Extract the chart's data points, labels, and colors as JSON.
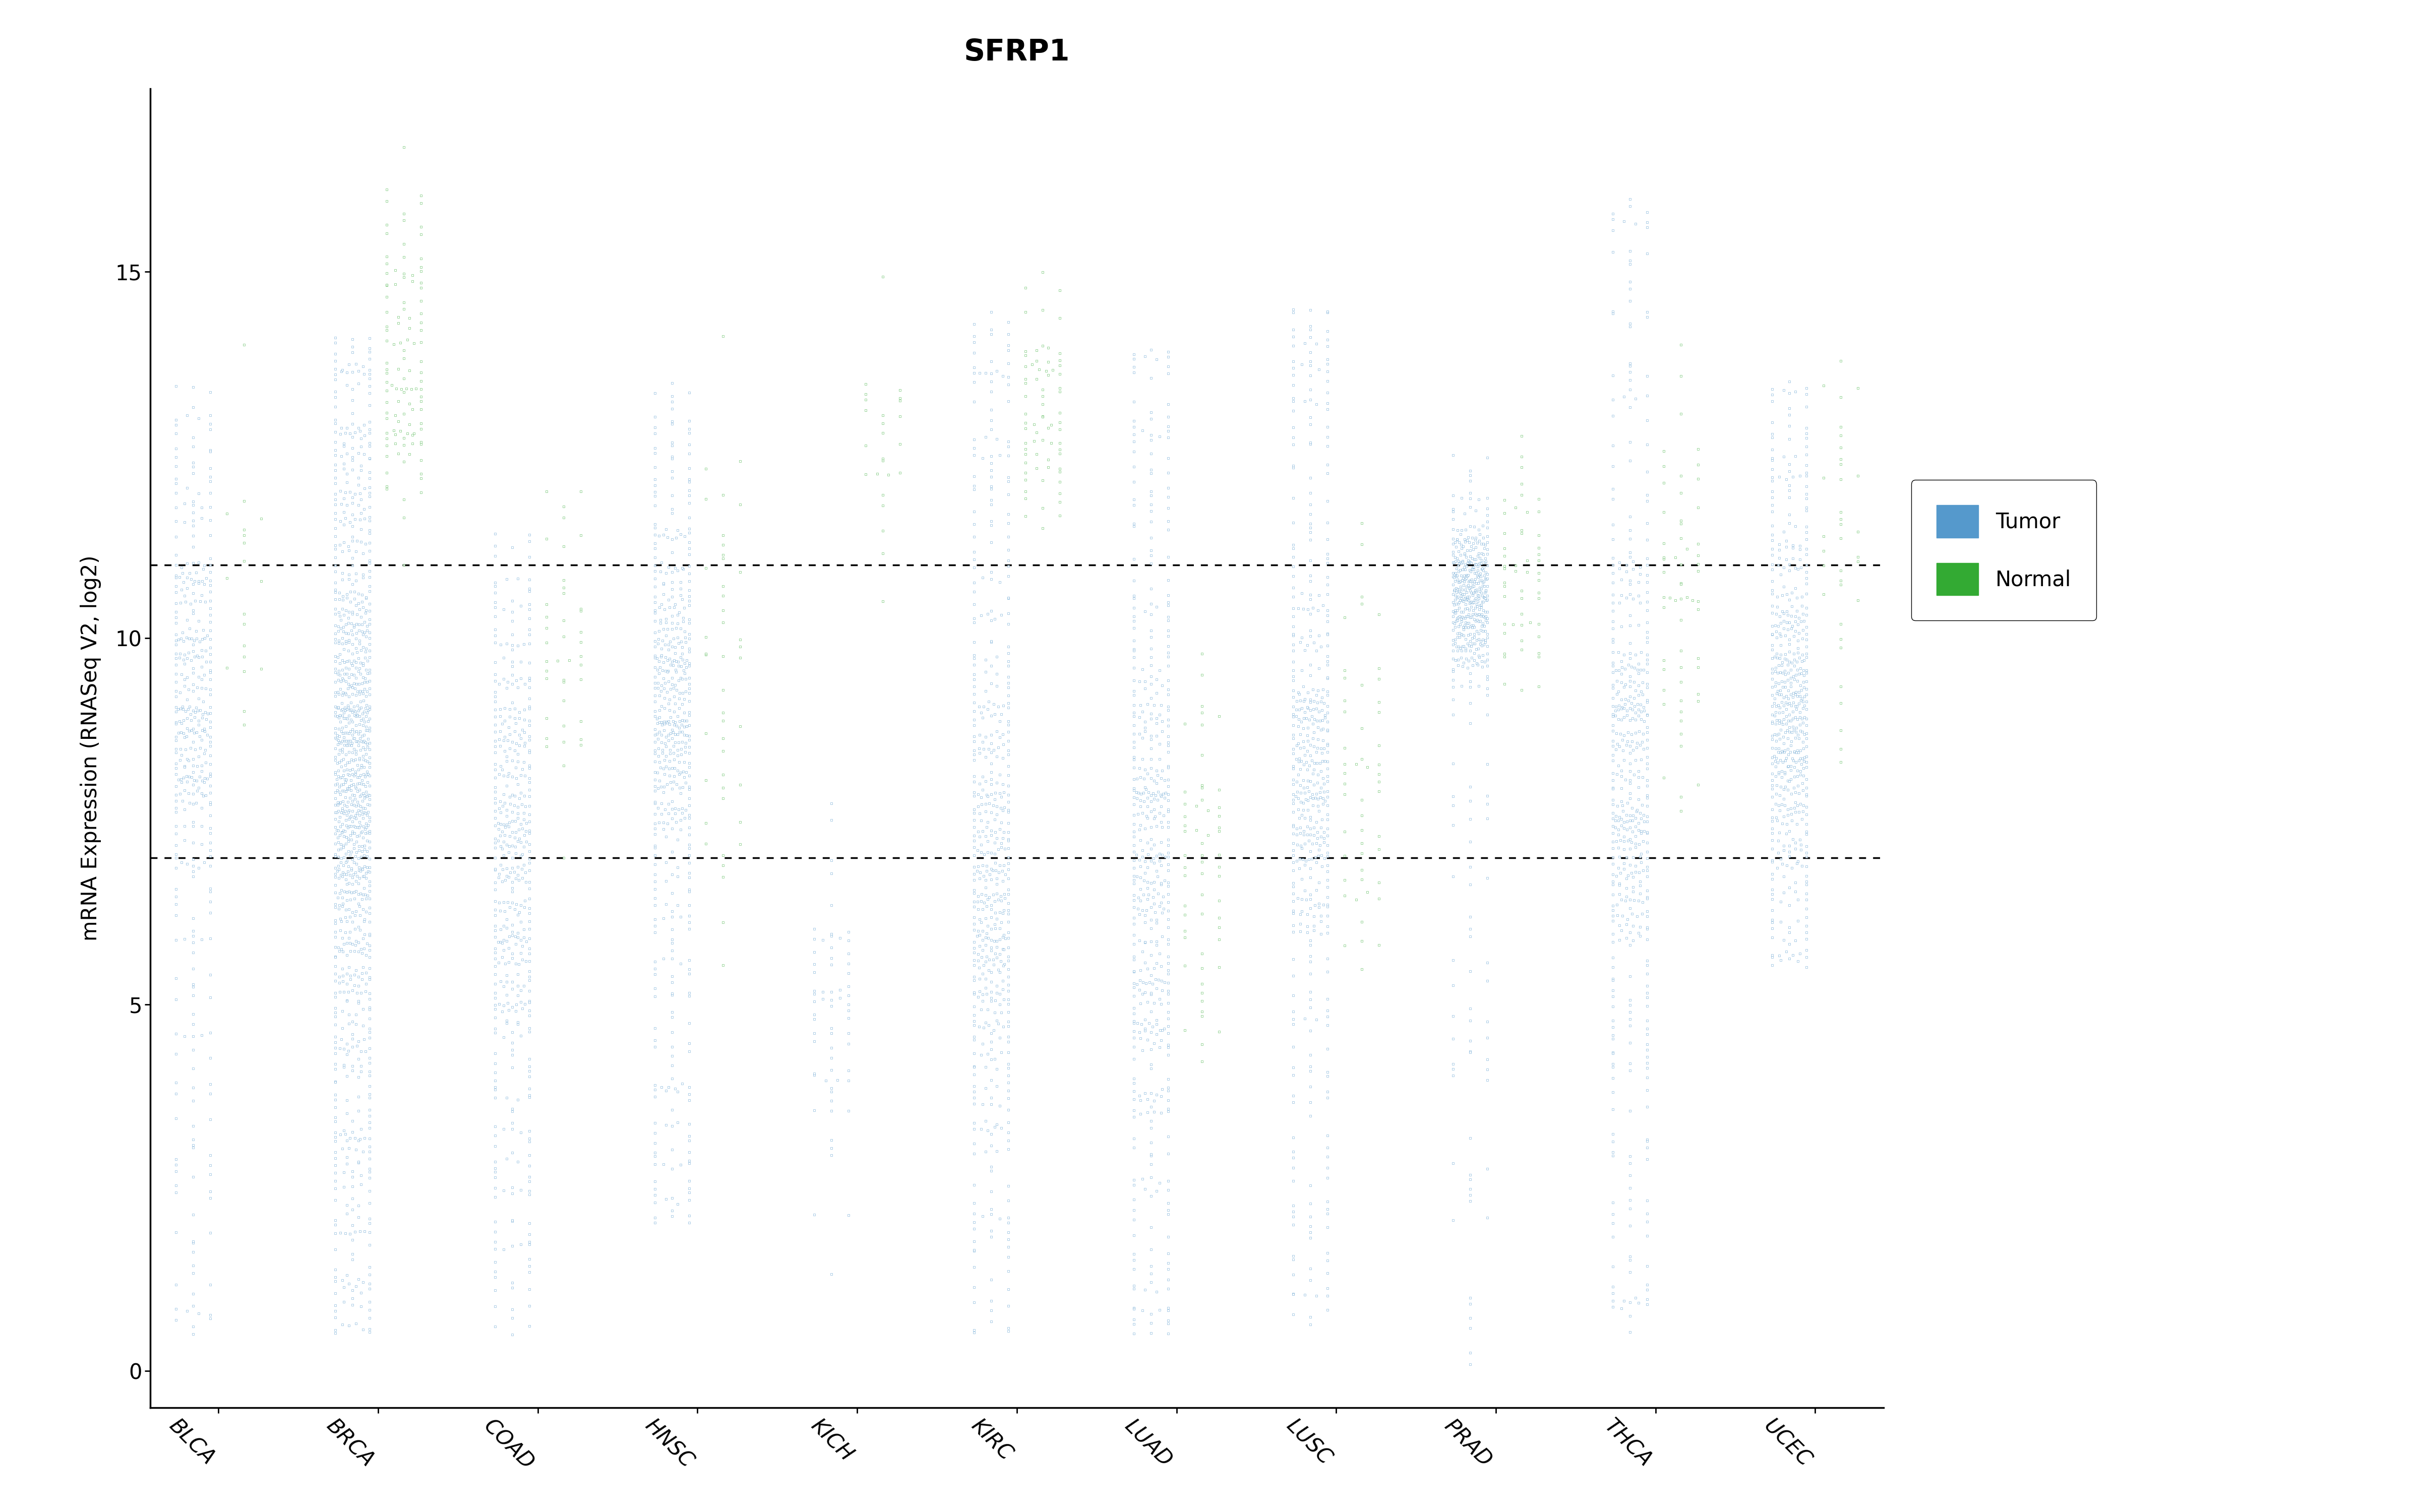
{
  "title": "SFRP1",
  "ylabel": "mRNA Expression (RNASeq V2, log2)",
  "cancer_types": [
    "BLCA",
    "BRCA",
    "COAD",
    "HNSC",
    "KICH",
    "KIRC",
    "LUAD",
    "LUSC",
    "PRAD",
    "THCA",
    "UCEC"
  ],
  "hline1": 7.0,
  "hline2": 11.0,
  "tumor_color": "#5599CC",
  "normal_color": "#33AA33",
  "background_color": "#FFFFFF",
  "ylim": [
    -0.5,
    17.5
  ],
  "figsize": [
    48,
    30
  ],
  "tumor_seeds": {
    "BLCA": {
      "mean": 9.2,
      "std": 2.5,
      "n": 410,
      "min": 0.0,
      "max": 14.0,
      "mode": 10.0,
      "spread": true
    },
    "BRCA": {
      "mean": 8.2,
      "std": 3.2,
      "n": 1090,
      "min": 0.0,
      "max": 14.7,
      "mode": 10.0,
      "spread": true
    },
    "COAD": {
      "mean": 7.2,
      "std": 3.2,
      "n": 460,
      "min": -0.2,
      "max": 12.0,
      "mode": 9.5,
      "spread": true
    },
    "HNSC": {
      "mean": 9.0,
      "std": 2.3,
      "n": 520,
      "min": 1.5,
      "max": 14.0,
      "mode": 9.8,
      "spread": true
    },
    "KICH": {
      "mean": 4.8,
      "std": 1.8,
      "n": 66,
      "min": 0.0,
      "max": 8.0,
      "mode": 4.8,
      "spread": false
    },
    "KIRC": {
      "mean": 6.5,
      "std": 3.5,
      "n": 530,
      "min": 0.0,
      "max": 15.0,
      "mode": 7.0,
      "spread": true
    },
    "LUAD": {
      "mean": 7.0,
      "std": 3.5,
      "n": 500,
      "min": 0.0,
      "max": 14.5,
      "mode": 8.0,
      "spread": true
    },
    "LUSC": {
      "mean": 8.2,
      "std": 2.4,
      "n": 490,
      "min": 0.0,
      "max": 15.0,
      "mode": 9.0,
      "spread": true
    },
    "PRAD": {
      "mean": 10.6,
      "std": 1.0,
      "n": 490,
      "min": 0.0,
      "max": 12.5,
      "mode": 10.8,
      "spread": false
    },
    "THCA": {
      "mean": 8.2,
      "std": 3.0,
      "n": 500,
      "min": 0.0,
      "max": 16.5,
      "mode": 9.0,
      "spread": true
    },
    "UCEC": {
      "mean": 9.0,
      "std": 2.2,
      "n": 540,
      "min": 5.0,
      "max": 14.0,
      "mode": 10.0,
      "spread": true
    }
  },
  "normal_seeds": {
    "BLCA": {
      "mean": 10.5,
      "std": 1.0,
      "n": 19,
      "min": 7.5,
      "max": 14.0
    },
    "BRCA": {
      "mean": 13.8,
      "std": 1.2,
      "n": 114,
      "min": 11.0,
      "max": 16.7
    },
    "COAD": {
      "mean": 9.6,
      "std": 1.2,
      "n": 41,
      "min": 7.0,
      "max": 12.0
    },
    "HNSC": {
      "mean": 9.8,
      "std": 1.8,
      "n": 44,
      "min": 4.5,
      "max": 14.5
    },
    "KICH": {
      "mean": 12.5,
      "std": 0.9,
      "n": 25,
      "min": 10.5,
      "max": 15.0
    },
    "KIRC": {
      "mean": 13.2,
      "std": 0.8,
      "n": 72,
      "min": 11.0,
      "max": 15.0
    },
    "LUAD": {
      "mean": 7.0,
      "std": 1.3,
      "n": 58,
      "min": 3.5,
      "max": 10.0
    },
    "LUSC": {
      "mean": 7.8,
      "std": 1.3,
      "n": 51,
      "min": 4.5,
      "max": 12.0
    },
    "PRAD": {
      "mean": 11.0,
      "std": 0.8,
      "n": 52,
      "min": 8.5,
      "max": 13.5
    },
    "THCA": {
      "mean": 10.8,
      "std": 1.3,
      "n": 59,
      "min": 7.5,
      "max": 16.0
    },
    "UCEC": {
      "mean": 11.5,
      "std": 1.2,
      "n": 35,
      "min": 8.0,
      "max": 15.0
    }
  }
}
